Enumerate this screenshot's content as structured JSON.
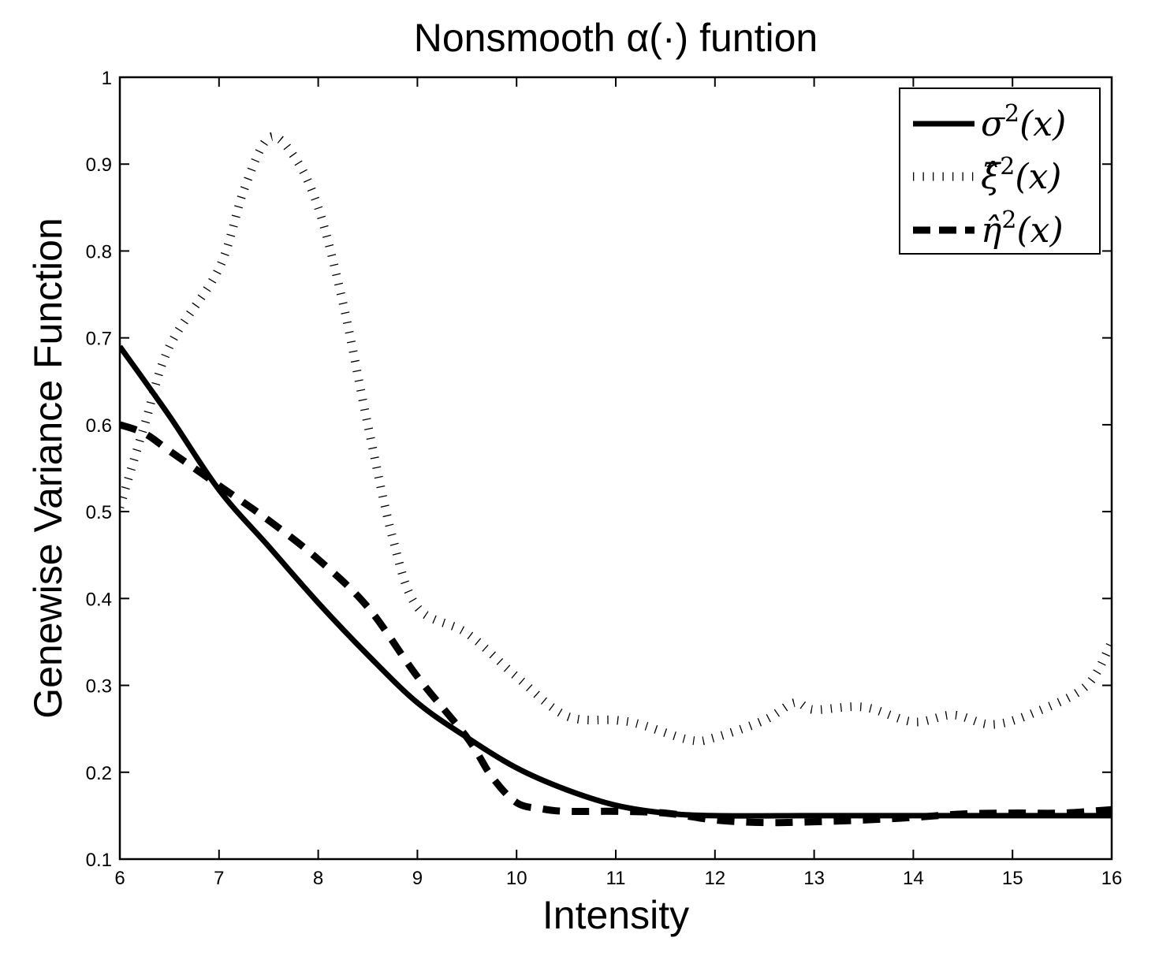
{
  "chart_data": {
    "type": "line",
    "title": "Nonsmooth α(·) funtion",
    "xlabel": "Intensity",
    "ylabel": "Genewise Variance Function",
    "xlim": [
      6,
      16
    ],
    "ylim": [
      0.1,
      1.0
    ],
    "x_ticks": [
      6,
      7,
      8,
      9,
      10,
      11,
      12,
      13,
      14,
      15,
      16
    ],
    "x_tick_labels": [
      "6",
      "7",
      "8",
      "9",
      "10",
      "11",
      "12",
      "13",
      "14",
      "15",
      "16"
    ],
    "y_ticks": [
      0.1,
      0.2,
      0.3,
      0.4,
      0.5,
      0.6,
      0.7,
      0.8,
      0.9,
      1.0
    ],
    "y_tick_labels": [
      "0.1",
      "0.2",
      "0.3",
      "0.4",
      "0.5",
      "0.6",
      "0.7",
      "0.8",
      "0.9",
      "1"
    ],
    "grid": false,
    "legend_position": "upper right",
    "series": [
      {
        "name": "σ²(x)",
        "label_base": "σ",
        "label_sup": "2",
        "label_arg": "(x)",
        "style": "solid",
        "color": "#000000",
        "x": [
          6,
          6.5,
          7,
          7.5,
          8,
          8.5,
          9,
          9.5,
          10,
          10.5,
          11,
          11.5,
          12,
          13,
          14,
          15,
          16
        ],
        "y": [
          0.69,
          0.61,
          0.525,
          0.46,
          0.395,
          0.335,
          0.28,
          0.24,
          0.205,
          0.18,
          0.162,
          0.153,
          0.15,
          0.15,
          0.15,
          0.15,
          0.15
        ]
      },
      {
        "name": "ξ̂²(x)",
        "label_base": "ξ̂",
        "label_sup": "2",
        "label_arg": "(x)",
        "style": "dotted",
        "color": "#000000",
        "x": [
          6,
          6.25,
          6.5,
          7,
          7.25,
          7.5,
          7.75,
          8,
          8.25,
          8.5,
          8.75,
          9,
          9.5,
          10,
          10.5,
          11,
          11.25,
          11.75,
          12,
          12.5,
          12.8,
          13,
          13.5,
          14,
          14.4,
          14.8,
          15.25,
          15.75,
          16
        ],
        "y": [
          0.505,
          0.6,
          0.69,
          0.78,
          0.87,
          0.93,
          0.91,
          0.85,
          0.74,
          0.6,
          0.47,
          0.39,
          0.36,
          0.31,
          0.265,
          0.26,
          0.255,
          0.237,
          0.24,
          0.26,
          0.28,
          0.272,
          0.275,
          0.258,
          0.266,
          0.255,
          0.27,
          0.3,
          0.35
        ]
      },
      {
        "name": "η̂²(x)",
        "label_base": "η̂",
        "label_sup": "2",
        "label_arg": "(x)",
        "style": "dashed",
        "color": "#000000",
        "x": [
          6,
          6.25,
          6.5,
          7,
          7.5,
          8,
          8.5,
          9,
          9.5,
          9.75,
          10,
          10.25,
          10.5,
          11,
          11.5,
          12,
          12.5,
          13,
          13.5,
          14,
          14.5,
          15,
          15.5,
          16
        ],
        "y": [
          0.6,
          0.59,
          0.57,
          0.53,
          0.49,
          0.445,
          0.39,
          0.31,
          0.24,
          0.195,
          0.165,
          0.158,
          0.155,
          0.155,
          0.153,
          0.145,
          0.142,
          0.143,
          0.145,
          0.148,
          0.152,
          0.153,
          0.153,
          0.157
        ]
      }
    ]
  }
}
